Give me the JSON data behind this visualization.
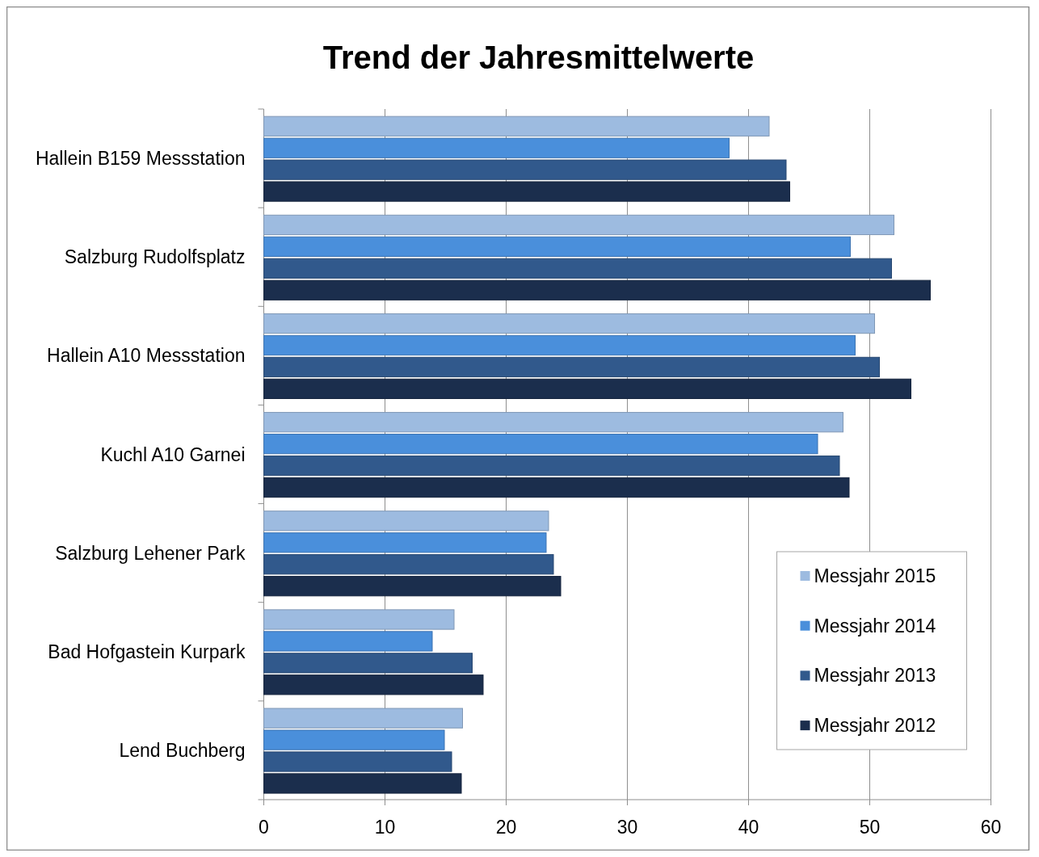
{
  "chart_data": {
    "type": "bar",
    "orientation": "horizontal",
    "title": "Trend der Jahresmittelwerte",
    "categories": [
      "Hallein B159 Messstation",
      "Salzburg Rudolfsplatz",
      "Hallein A10 Messstation",
      "Kuchl A10 Garnei",
      "Salzburg Lehener Park",
      "Bad Hofgastein Kurpark",
      "Lend Buchberg"
    ],
    "series": [
      {
        "name": "Messjahr 2015",
        "color": "#9dbbe0",
        "values": [
          41.7,
          52.0,
          50.4,
          47.8,
          23.5,
          15.7,
          16.4
        ]
      },
      {
        "name": "Messjahr 2014",
        "color": "#4a8fdb",
        "values": [
          38.4,
          48.4,
          48.8,
          45.7,
          23.3,
          13.9,
          14.9
        ]
      },
      {
        "name": "Messjahr 2013",
        "color": "#31598c",
        "values": [
          43.1,
          51.8,
          50.8,
          47.5,
          23.9,
          17.2,
          15.5
        ]
      },
      {
        "name": "Messjahr 2012",
        "color": "#1b2e4d",
        "values": [
          43.4,
          55.0,
          53.4,
          48.3,
          24.5,
          18.1,
          16.3
        ]
      }
    ],
    "xlim": [
      0,
      60
    ],
    "xticks": [
      0,
      10,
      20,
      30,
      40,
      50,
      60
    ],
    "grid": "x",
    "legend": "bottom right"
  }
}
